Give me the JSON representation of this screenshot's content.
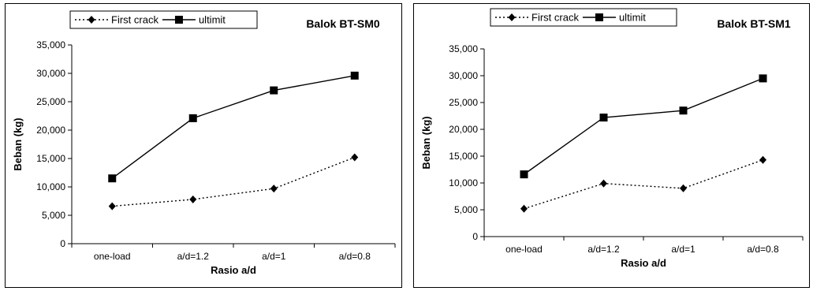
{
  "chart_data": [
    {
      "type": "line",
      "title": "Balok BT-SM0",
      "xlabel": "Rasio a/d",
      "ylabel": "Beban (kg)",
      "categories": [
        "one-load",
        "a/d=1.2",
        "a/d=1",
        "a/d=0.8"
      ],
      "ylim": [
        0,
        35000
      ],
      "yticks": [
        "0",
        "5,000",
        "10,000",
        "15,000",
        "20,000",
        "25,000",
        "30,000",
        "35,000"
      ],
      "legend_position": "top-left",
      "series": [
        {
          "name": "First crack",
          "style": "dotted",
          "marker": "diamond",
          "values": [
            6600,
            7800,
            9700,
            15200
          ]
        },
        {
          "name": "ultimit",
          "style": "solid",
          "marker": "square",
          "values": [
            11500,
            22100,
            27000,
            29600
          ]
        }
      ]
    },
    {
      "type": "line",
      "title": "Balok BT-SM1",
      "xlabel": "Rasio a/d",
      "ylabel": "Beban (kg)",
      "categories": [
        "one-load",
        "a/d=1.2",
        "a/d=1",
        "a/d=0.8"
      ],
      "ylim": [
        0,
        35000
      ],
      "yticks": [
        "0",
        "5,000",
        "10,000",
        "15,000",
        "20,000",
        "25,000",
        "30,000",
        "35,000"
      ],
      "legend_position": "top-left",
      "series": [
        {
          "name": "First crack",
          "style": "dotted",
          "marker": "diamond",
          "values": [
            5200,
            9900,
            9000,
            14300
          ]
        },
        {
          "name": "ultimit",
          "style": "solid",
          "marker": "square",
          "values": [
            11600,
            22200,
            23500,
            29500
          ]
        }
      ]
    }
  ]
}
